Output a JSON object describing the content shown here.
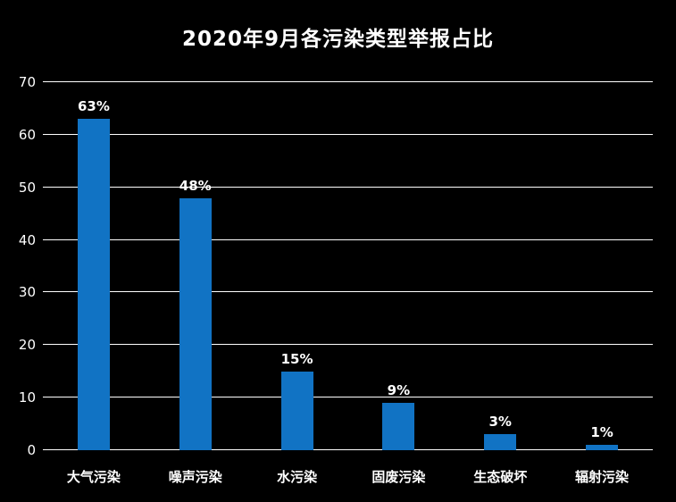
{
  "chart_data": {
    "type": "bar",
    "title": "2020年9月各污染类型举报占比",
    "categories": [
      "大气污染",
      "噪声污染",
      "水污染",
      "固废污染",
      "生态破坏",
      "辐射污染"
    ],
    "values": [
      63,
      48,
      15,
      9,
      3,
      1
    ],
    "value_labels": [
      "63%",
      "48%",
      "15%",
      "9%",
      "3%",
      "1%"
    ],
    "xlabel": "",
    "ylabel": "",
    "ylim": [
      0,
      70
    ],
    "yticks": [
      0,
      10,
      20,
      30,
      40,
      50,
      60,
      70
    ],
    "grid": true,
    "legend": false,
    "colors": {
      "background": "#000000",
      "bar": "#1173c4",
      "text": "#ffffff",
      "gridline": "#ffffff"
    }
  }
}
